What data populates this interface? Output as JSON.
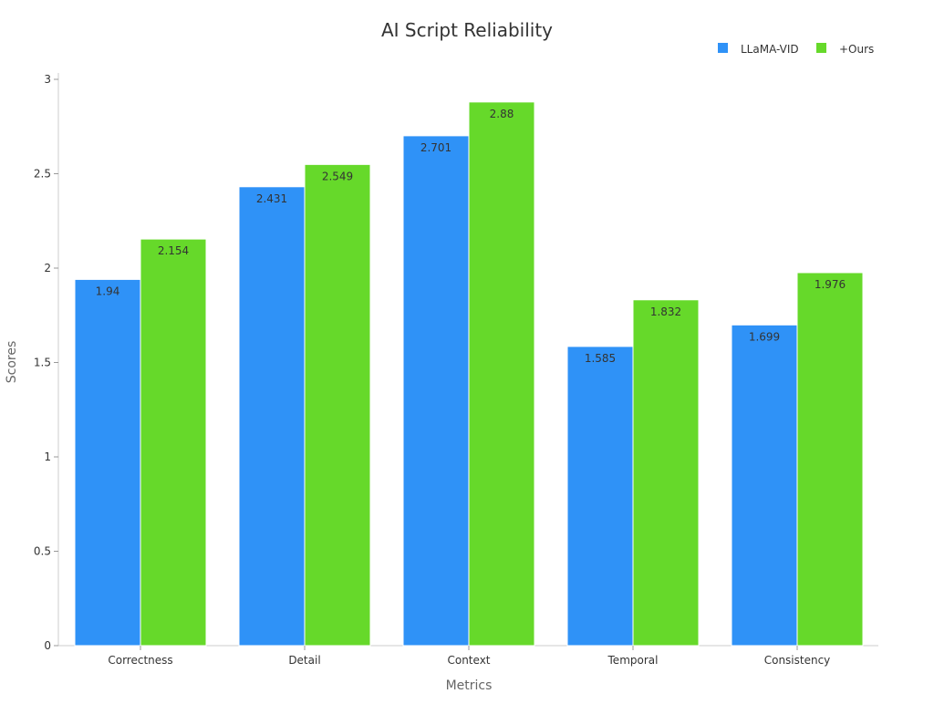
{
  "chart_data": {
    "type": "bar",
    "title": "AI Script Reliability",
    "xlabel": "Metrics",
    "ylabel": "Scores",
    "ylim": [
      0,
      3
    ],
    "yticks": [
      "0",
      "0.5",
      "1",
      "1.5",
      "2",
      "2.5",
      "3"
    ],
    "categories": [
      "Correctness",
      "Detail",
      "Context",
      "Temporal",
      "Consistency"
    ],
    "series": [
      {
        "name": "LLaMA-VID",
        "color": "#2f92f7",
        "values": [
          1.94,
          2.431,
          2.701,
          1.585,
          1.699
        ],
        "labels": [
          "1.94",
          "2.431",
          "2.701",
          "1.585",
          "1.699"
        ]
      },
      {
        "name": "+Ours",
        "color": "#66d92a",
        "values": [
          2.154,
          2.549,
          2.88,
          1.832,
          1.976
        ],
        "labels": [
          "2.154",
          "2.549",
          "2.88",
          "1.832",
          "1.976"
        ]
      }
    ],
    "legend": "top-right",
    "grid": false
  }
}
